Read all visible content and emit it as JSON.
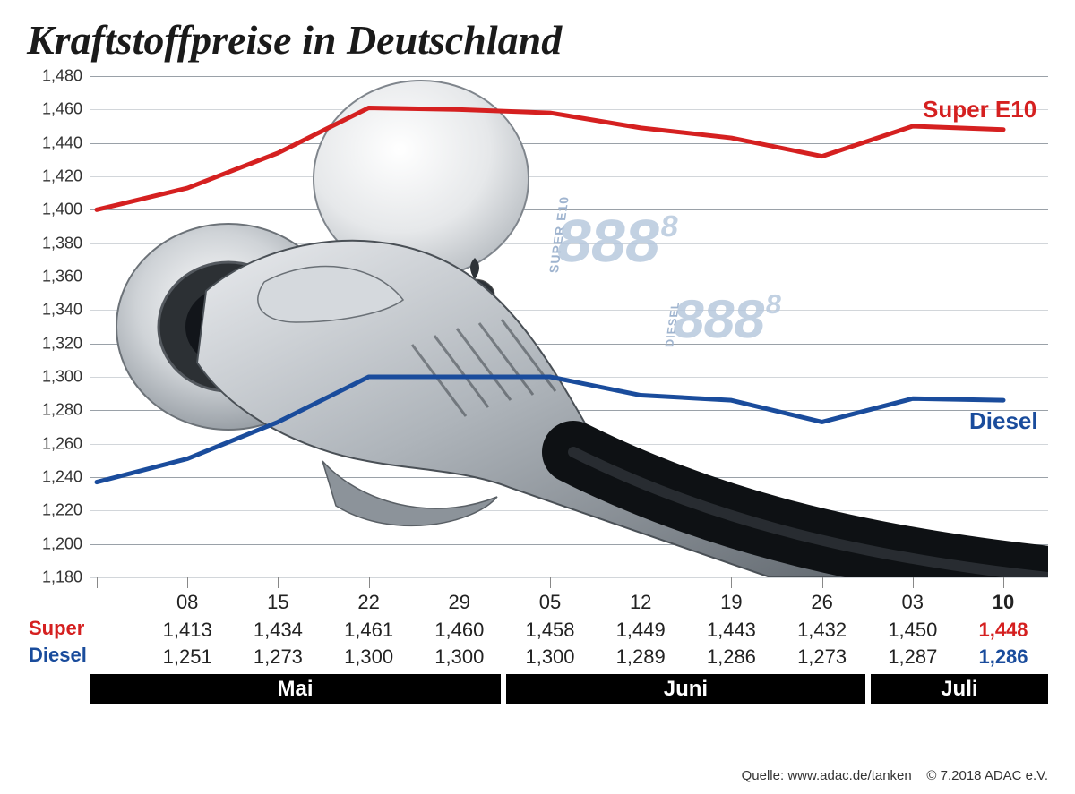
{
  "title": {
    "text": "Kraftstoffpreise in Deutschland",
    "fontsize": 46,
    "color": "#1a1a1a"
  },
  "chart": {
    "type": "line",
    "background": "#ffffff",
    "grid_colors": {
      "major": "#9aa1a8",
      "minor": "#d2d6da"
    },
    "y": {
      "min": 1.18,
      "max": 1.48,
      "step": 0.02,
      "ticks": [
        "1,480",
        "1,460",
        "1,440",
        "1,420",
        "1,400",
        "1,380",
        "1,360",
        "1,340",
        "1,320",
        "1,300",
        "1,280",
        "1,260",
        "1,240",
        "1,220",
        "1,200",
        "1,180"
      ],
      "label_fontsize": 18
    },
    "x": {
      "days": [
        "08",
        "15",
        "22",
        "29",
        "05",
        "12",
        "19",
        "26",
        "03",
        "10"
      ],
      "last_bold_index": 9,
      "label_fontsize": 22,
      "months": [
        {
          "label": "Mai",
          "span_days": 4
        },
        {
          "label": "Juni",
          "span_days": 4
        },
        {
          "label": "Juli",
          "span_days": 2
        }
      ],
      "month_bg": "#000000",
      "month_fontsize": 24
    },
    "series": [
      {
        "name": "Super E10",
        "name_short": "Super",
        "color": "#d52020",
        "line_width": 5,
        "label_fontsize": 26,
        "values_raw": [
          1.4,
          1.413,
          1.434,
          1.461,
          1.46,
          1.458,
          1.449,
          1.443,
          1.432,
          1.45,
          1.448
        ],
        "values_display": [
          "1,413",
          "1,434",
          "1,461",
          "1,460",
          "1,458",
          "1,449",
          "1,443",
          "1,432",
          "1,450",
          "1,448"
        ]
      },
      {
        "name": "Diesel",
        "name_short": "Diesel",
        "color": "#1a4c9c",
        "line_width": 5,
        "label_fontsize": 26,
        "values_raw": [
          1.237,
          1.251,
          1.273,
          1.3,
          1.3,
          1.3,
          1.289,
          1.286,
          1.273,
          1.287,
          1.286
        ],
        "values_display": [
          "1,251",
          "1,273",
          "1,300",
          "1,300",
          "1,300",
          "1,289",
          "1,286",
          "1,273",
          "1,287",
          "1,286"
        ]
      }
    ],
    "table": {
      "value_fontsize": 22,
      "last_bold": true
    }
  },
  "decor": {
    "digit_color": "#b8c9de",
    "digit_label_color": "#9fb4cf",
    "labels": [
      "SUPER E10",
      "DIESEL"
    ]
  },
  "footer": {
    "source_label": "Quelle:",
    "source": "www.adac.de/tanken",
    "copyright": "© 7.2018  ADAC e.V.",
    "fontsize": 15
  }
}
